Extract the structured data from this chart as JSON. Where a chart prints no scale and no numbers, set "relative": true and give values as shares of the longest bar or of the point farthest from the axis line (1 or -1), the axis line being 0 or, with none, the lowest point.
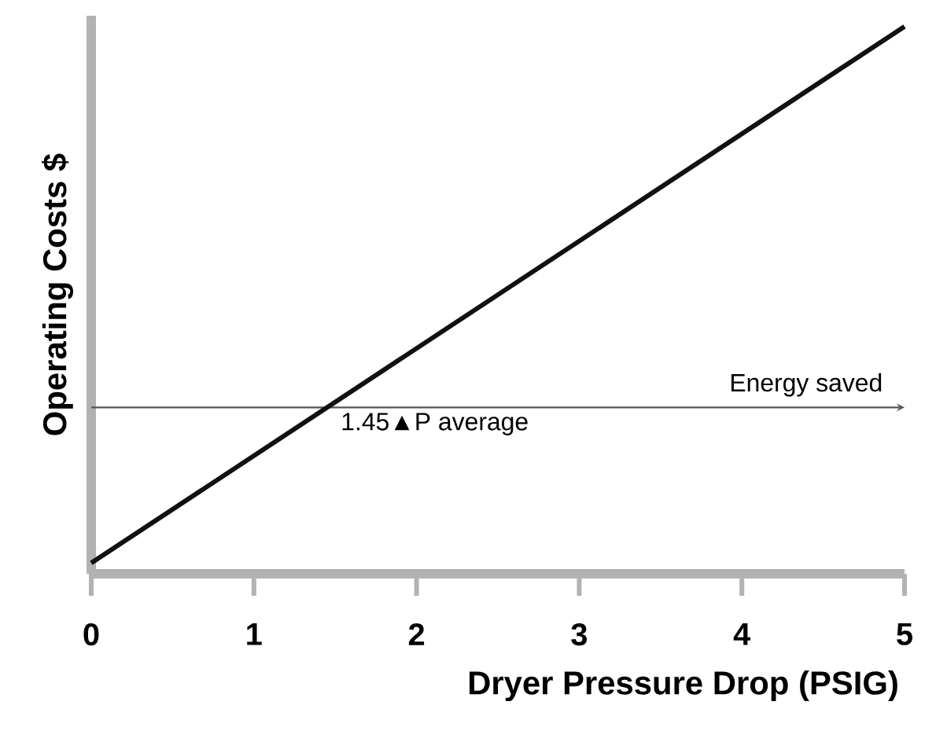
{
  "chart_data": {
    "type": "line",
    "xlabel": "Dryer Pressure Drop (PSIG)",
    "ylabel": "Operating Costs $",
    "relative": true,
    "x": [
      0,
      5
    ],
    "xlim": [
      0,
      5
    ],
    "xticks": [
      0,
      1,
      2,
      3,
      4,
      5
    ],
    "series": [
      {
        "color": "#111111",
        "values": [
          0,
          1
        ]
      }
    ],
    "ref_lines": [
      {
        "axis": "y",
        "value": 0.29,
        "label": "1.45▲P average",
        "color": "#555555"
      }
    ],
    "annotations": [
      "Energy saved"
    ]
  }
}
